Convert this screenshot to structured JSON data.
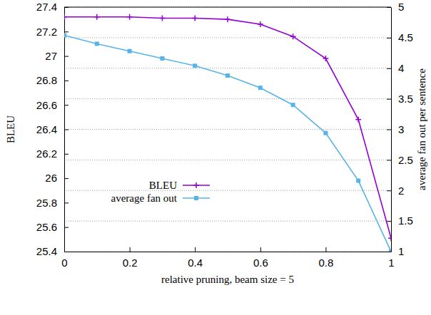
{
  "chart_data": {
    "type": "line",
    "x_label": "relative pruning, beam size = 5",
    "y_label": "BLEU",
    "y2_label": "average fan out per sentence",
    "x": [
      0,
      0.1,
      0.2,
      0.3,
      0.4,
      0.5,
      0.6,
      0.7,
      0.8,
      0.9,
      1
    ],
    "series": [
      {
        "name": "BLEU",
        "color": "#9400d3",
        "marker": "plus",
        "values": [
          27.32,
          27.32,
          27.32,
          27.31,
          27.31,
          27.3,
          27.26,
          27.16,
          26.98,
          26.48,
          25.51
        ]
      },
      {
        "name": "average fan out",
        "color": "#56b4e9",
        "marker": "square",
        "axis": "y2",
        "values": [
          4.54,
          4.4,
          4.28,
          4.16,
          4.04,
          3.88,
          3.68,
          3.4,
          2.94,
          2.16,
          1.0
        ]
      }
    ],
    "xlim": [
      0,
      1
    ],
    "xticks": [
      0,
      0.2,
      0.4,
      0.6,
      0.8,
      1
    ],
    "ylim": [
      25.4,
      27.4
    ],
    "yticks": [
      25.4,
      25.6,
      25.8,
      26,
      26.2,
      26.4,
      26.6,
      26.8,
      27,
      27.2,
      27.4
    ],
    "y2lim": [
      1,
      5
    ],
    "y2ticks": [
      1,
      1.5,
      2,
      2.5,
      3,
      3.5,
      4,
      4.5,
      5
    ],
    "grid": true,
    "legend": "center"
  }
}
